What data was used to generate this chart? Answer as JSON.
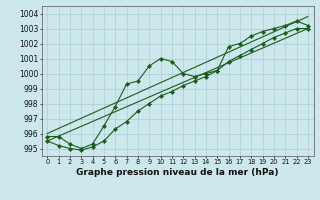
{
  "title": "Graphe pression niveau de la mer (hPa)",
  "background_color": "#cce8ec",
  "grid_color": "#aacdd4",
  "line_color": "#1a5c1a",
  "marker_color": "#1a5c1a",
  "x_labels": [
    "0",
    "1",
    "2",
    "3",
    "4",
    "5",
    "6",
    "7",
    "8",
    "9",
    "10",
    "11",
    "12",
    "13",
    "14",
    "15",
    "16",
    "17",
    "18",
    "19",
    "20",
    "21",
    "22",
    "23"
  ],
  "xlim": [
    -0.5,
    23.5
  ],
  "ylim": [
    994.5,
    1004.5
  ],
  "yticks": [
    995,
    996,
    997,
    998,
    999,
    1000,
    1001,
    1002,
    1003,
    1004
  ],
  "series_main": [
    995.8,
    995.8,
    995.3,
    995.0,
    995.3,
    996.5,
    997.8,
    999.3,
    999.5,
    1000.5,
    1001.0,
    1000.8,
    1000.0,
    999.8,
    1000.0,
    1000.2,
    1001.8,
    1002.0,
    1002.5,
    1002.8,
    1003.0,
    1003.2,
    1003.5,
    1003.2
  ],
  "series_low": [
    995.5,
    995.2,
    995.0,
    994.9,
    995.1,
    995.5,
    996.3,
    996.8,
    997.5,
    998.0,
    998.5,
    998.8,
    999.2,
    999.5,
    999.8,
    1000.2,
    1000.8,
    1001.2,
    1001.6,
    1002.0,
    1002.4,
    1002.7,
    1003.0,
    1003.0
  ],
  "title_fontsize": 6.5,
  "tick_fontsize": 5.5,
  "xtick_fontsize": 4.8
}
